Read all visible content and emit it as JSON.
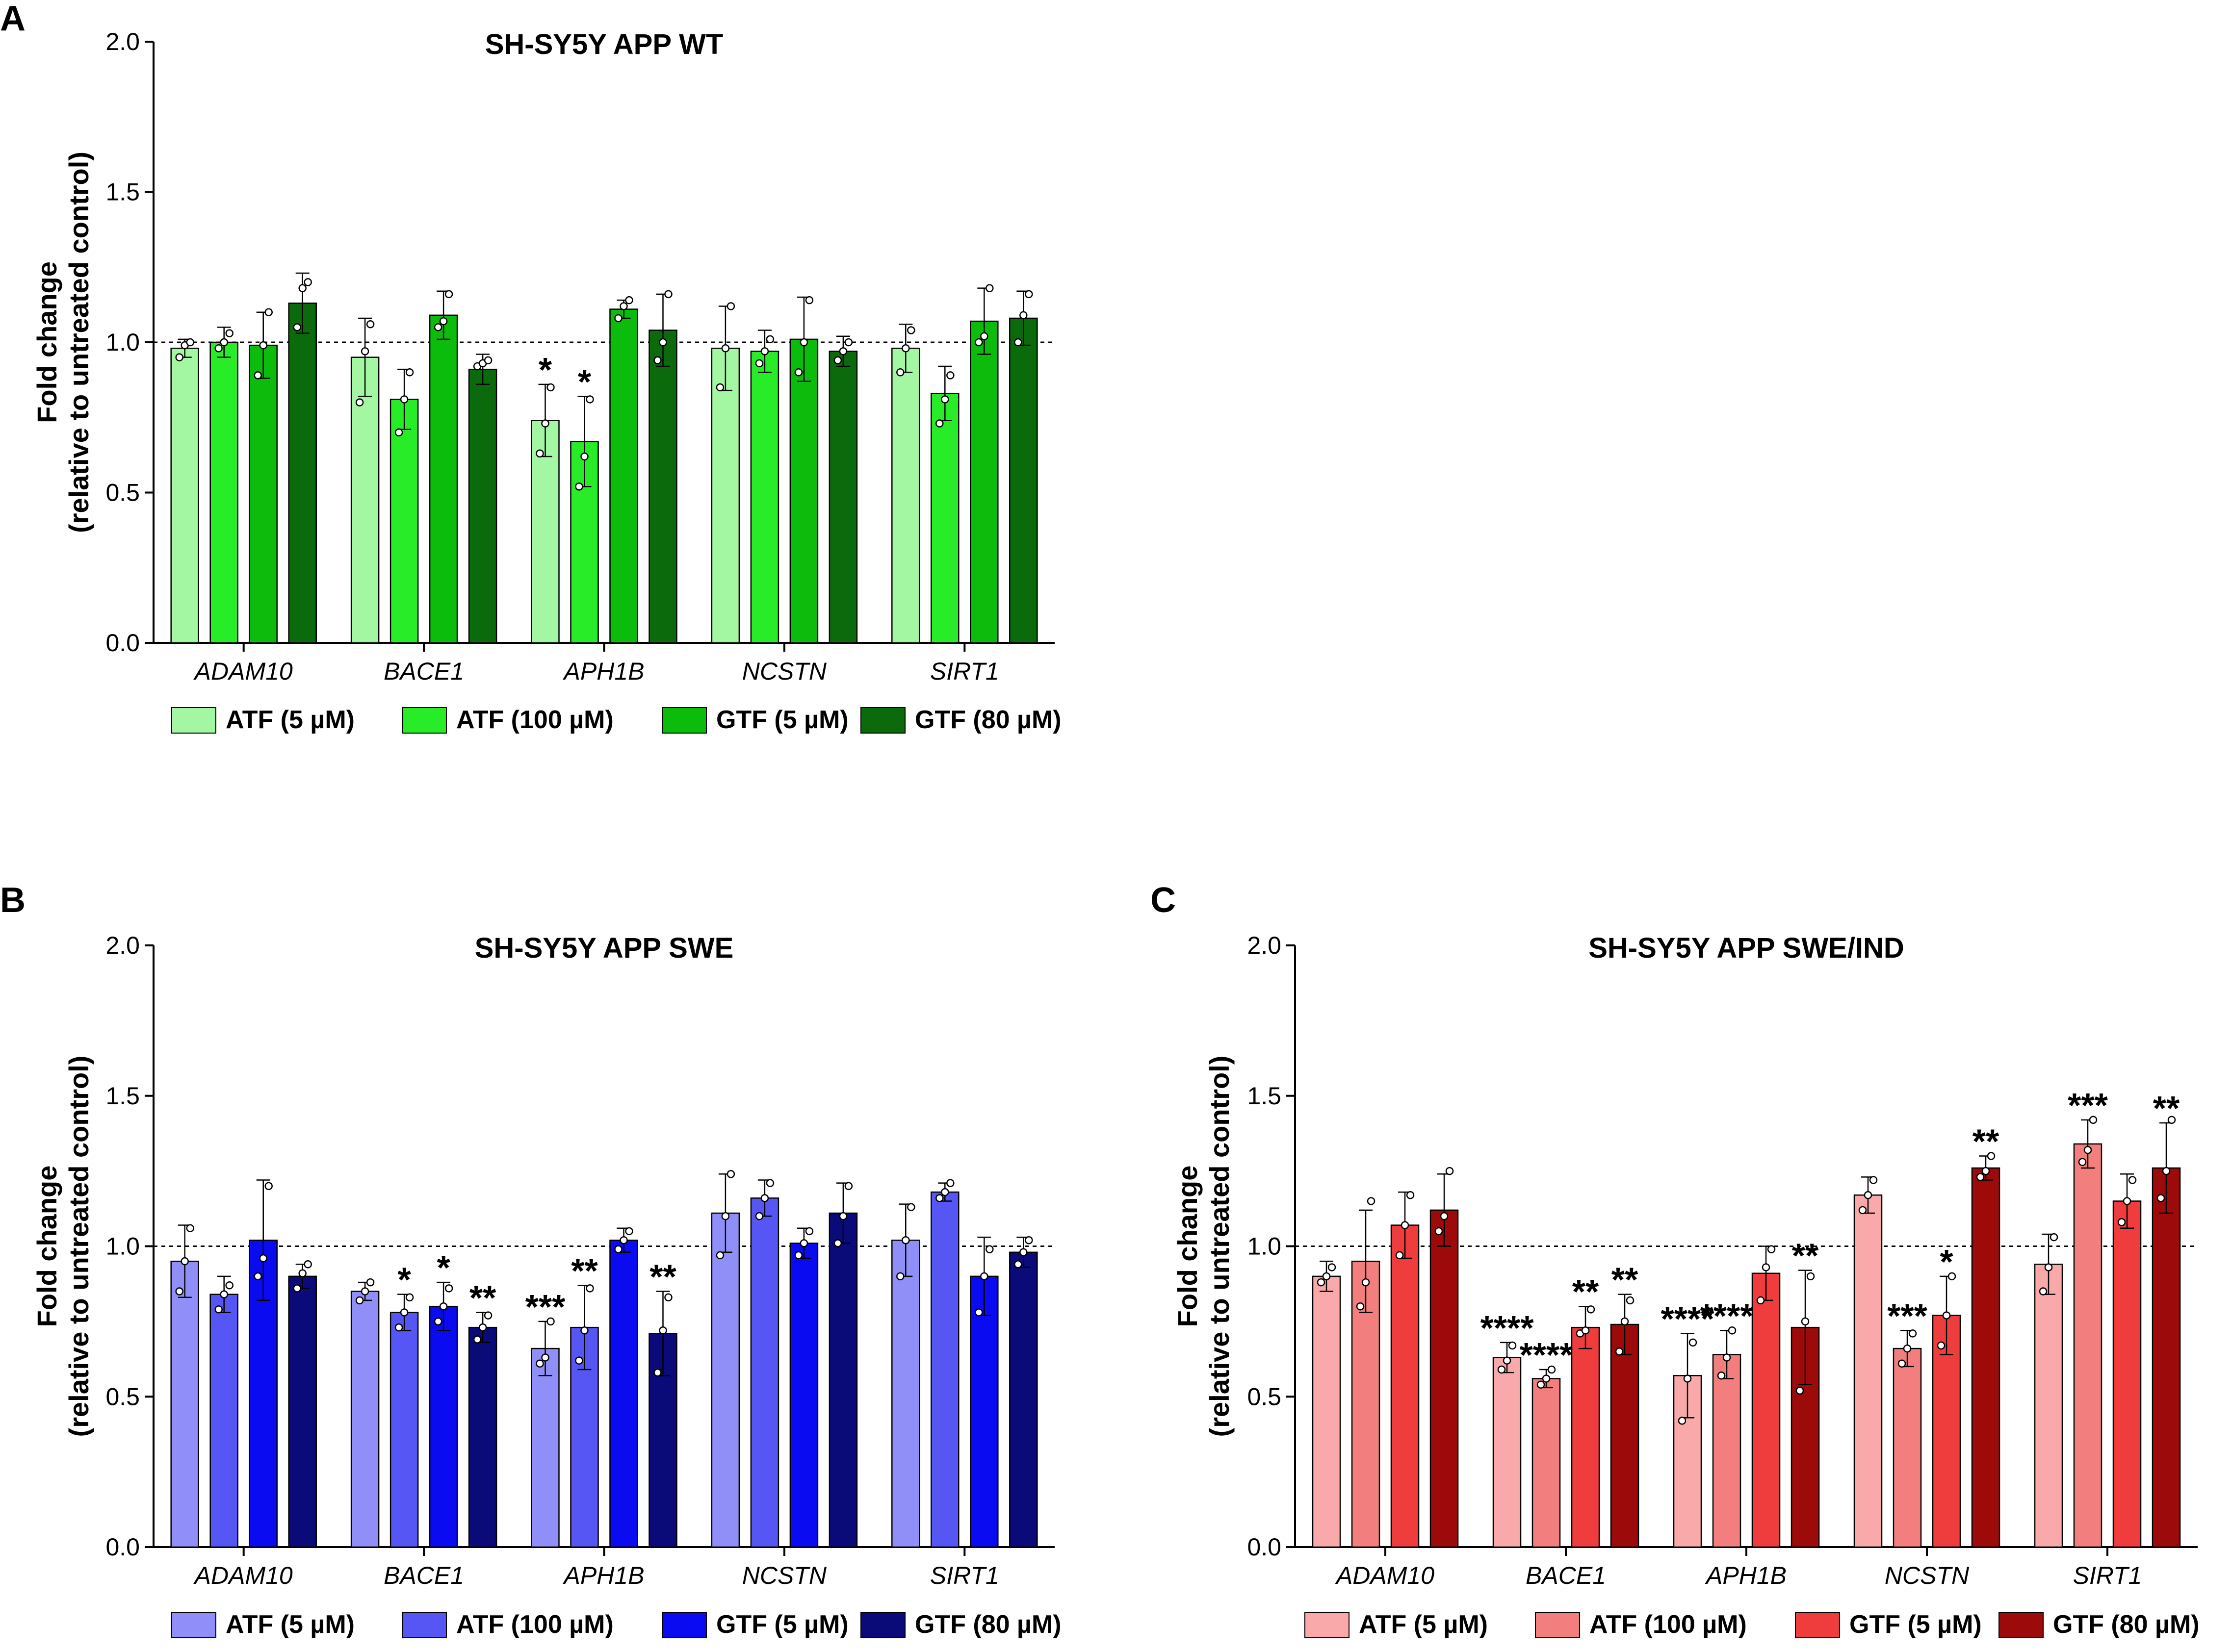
{
  "figure": {
    "ylabel_line1": "Fold change",
    "ylabel_line2": "(relative to untreated control)"
  },
  "chart_data": [
    {
      "panel": "A",
      "type": "bar",
      "title": "SH-SY5Y APP WT",
      "ylim": [
        0,
        2
      ],
      "yticks": [
        "0.0",
        "0.5",
        "1.0",
        "1.5",
        "2.0"
      ],
      "reference_line": 1.0,
      "categories": [
        "ADAM10",
        "BACE1",
        "APH1B",
        "NCSTN",
        "SIRT1"
      ],
      "series": [
        {
          "name": "ATF (5 µM)",
          "color": "#a3f7a3",
          "values": [
            0.98,
            0.95,
            0.74,
            0.98,
            0.98
          ],
          "errors": [
            0.03,
            0.13,
            0.12,
            0.14,
            0.08
          ],
          "sig": [
            "",
            "",
            "*",
            "",
            ""
          ],
          "points": [
            [
              0.95,
              0.99,
              1.0
            ],
            [
              0.8,
              0.97,
              1.06
            ],
            [
              0.63,
              0.73,
              0.85
            ],
            [
              0.85,
              0.98,
              1.12
            ],
            [
              0.9,
              0.98,
              1.04
            ]
          ]
        },
        {
          "name": "ATF (100 µM)",
          "color": "#28ec28",
          "values": [
            1.0,
            0.81,
            0.67,
            0.97,
            0.83
          ],
          "errors": [
            0.05,
            0.1,
            0.15,
            0.07,
            0.09
          ],
          "sig": [
            "",
            "",
            "*",
            "",
            ""
          ],
          "points": [
            [
              0.98,
              1.0,
              1.03
            ],
            [
              0.7,
              0.81,
              0.9
            ],
            [
              0.52,
              0.62,
              0.81
            ],
            [
              0.93,
              0.97,
              1.01
            ],
            [
              0.73,
              0.81,
              0.89
            ]
          ]
        },
        {
          "name": "GTF (5 µM)",
          "color": "#0cbc0c",
          "values": [
            0.99,
            1.09,
            1.11,
            1.01,
            1.07
          ],
          "errors": [
            0.11,
            0.08,
            0.03,
            0.14,
            0.11
          ],
          "sig": [
            "",
            "",
            "",
            "",
            ""
          ],
          "points": [
            [
              0.89,
              0.99,
              1.1
            ],
            [
              1.05,
              1.07,
              1.16
            ],
            [
              1.08,
              1.12,
              1.14
            ],
            [
              0.9,
              1.0,
              1.14
            ],
            [
              1.0,
              1.02,
              1.18
            ]
          ]
        },
        {
          "name": "GTF (80 µM)",
          "color": "#0b6a0b",
          "values": [
            1.13,
            0.91,
            1.04,
            0.97,
            1.08
          ],
          "errors": [
            0.1,
            0.05,
            0.12,
            0.05,
            0.09
          ],
          "sig": [
            "",
            "",
            "",
            "",
            ""
          ],
          "points": [
            [
              1.05,
              1.18,
              1.2
            ],
            [
              0.92,
              0.93,
              0.94
            ],
            [
              0.94,
              1.0,
              1.16
            ],
            [
              0.94,
              0.97,
              1.0
            ],
            [
              1.0,
              1.09,
              1.16
            ]
          ]
        }
      ]
    },
    {
      "panel": "B",
      "type": "bar",
      "title": "SH-SY5Y APP SWE",
      "ylim": [
        0,
        2
      ],
      "yticks": [
        "0.0",
        "0.5",
        "1.0",
        "1.5",
        "2.0"
      ],
      "reference_line": 1.0,
      "categories": [
        "ADAM10",
        "BACE1",
        "APH1B",
        "NCSTN",
        "SIRT1"
      ],
      "series": [
        {
          "name": "ATF (5 µM)",
          "color": "#8f8ff7",
          "values": [
            0.95,
            0.85,
            0.66,
            1.11,
            1.02
          ],
          "errors": [
            0.12,
            0.03,
            0.09,
            0.13,
            0.12
          ],
          "sig": [
            "",
            "",
            "***",
            "",
            ""
          ],
          "points": [
            [
              0.85,
              0.95,
              1.06
            ],
            [
              0.82,
              0.85,
              0.88
            ],
            [
              0.61,
              0.63,
              0.75
            ],
            [
              0.97,
              1.1,
              1.24
            ],
            [
              0.9,
              1.02,
              1.13
            ]
          ]
        },
        {
          "name": "ATF (100 µM)",
          "color": "#5656f5",
          "values": [
            0.84,
            0.78,
            0.73,
            1.16,
            1.18
          ],
          "errors": [
            0.06,
            0.06,
            0.14,
            0.06,
            0.03
          ],
          "sig": [
            "",
            "*",
            "**",
            "",
            ""
          ],
          "points": [
            [
              0.79,
              0.84,
              0.87
            ],
            [
              0.73,
              0.78,
              0.83
            ],
            [
              0.62,
              0.72,
              0.86
            ],
            [
              1.1,
              1.16,
              1.21
            ],
            [
              1.16,
              1.18,
              1.21
            ]
          ]
        },
        {
          "name": "GTF (5 µM)",
          "color": "#0b0bf2",
          "values": [
            1.02,
            0.8,
            1.02,
            1.01,
            0.9
          ],
          "errors": [
            0.2,
            0.08,
            0.04,
            0.05,
            0.13
          ],
          "sig": [
            "",
            "*",
            "",
            "",
            ""
          ],
          "points": [
            [
              0.9,
              0.96,
              1.2
            ],
            [
              0.75,
              0.8,
              0.86
            ],
            [
              0.99,
              1.02,
              1.05
            ],
            [
              0.97,
              1.01,
              1.05
            ],
            [
              0.78,
              0.9,
              0.99
            ]
          ]
        },
        {
          "name": "GTF (80 µM)",
          "color": "#0a0a78",
          "values": [
            0.9,
            0.73,
            0.71,
            1.11,
            0.98
          ],
          "errors": [
            0.04,
            0.05,
            0.14,
            0.1,
            0.05
          ],
          "sig": [
            "",
            "**",
            "**",
            "",
            ""
          ],
          "points": [
            [
              0.86,
              0.91,
              0.94
            ],
            [
              0.69,
              0.73,
              0.77
            ],
            [
              0.58,
              0.72,
              0.83
            ],
            [
              1.01,
              1.1,
              1.2
            ],
            [
              0.94,
              0.98,
              1.02
            ]
          ]
        }
      ]
    },
    {
      "panel": "C",
      "type": "bar",
      "title": "SH-SY5Y APP SWE/IND",
      "ylim": [
        0,
        2
      ],
      "yticks": [
        "0.0",
        "0.5",
        "1.0",
        "1.5",
        "2.0"
      ],
      "reference_line": 1.0,
      "categories": [
        "ADAM10",
        "BACE1",
        "APH1B",
        "NCSTN",
        "SIRT1"
      ],
      "series": [
        {
          "name": "ATF (5 µM)",
          "color": "#f9a9a9",
          "values": [
            0.9,
            0.63,
            0.57,
            1.17,
            0.94
          ],
          "errors": [
            0.05,
            0.05,
            0.14,
            0.06,
            0.1
          ],
          "sig": [
            "",
            "****",
            "****",
            "",
            ""
          ],
          "points": [
            [
              0.88,
              0.9,
              0.93
            ],
            [
              0.59,
              0.62,
              0.67
            ],
            [
              0.42,
              0.56,
              0.68
            ],
            [
              1.12,
              1.17,
              1.22
            ],
            [
              0.85,
              0.93,
              1.03
            ]
          ]
        },
        {
          "name": "ATF (100 µM)",
          "color": "#f27e7e",
          "values": [
            0.95,
            0.56,
            0.64,
            0.66,
            1.34
          ],
          "errors": [
            0.17,
            0.03,
            0.08,
            0.06,
            0.08
          ],
          "sig": [
            "",
            "****",
            "****",
            "***",
            "***"
          ],
          "points": [
            [
              0.8,
              0.88,
              1.15
            ],
            [
              0.54,
              0.56,
              0.59
            ],
            [
              0.57,
              0.63,
              0.72
            ],
            [
              0.61,
              0.66,
              0.71
            ],
            [
              1.28,
              1.32,
              1.42
            ]
          ]
        },
        {
          "name": "GTF (5 µM)",
          "color": "#ef3d3d",
          "values": [
            1.07,
            0.73,
            0.91,
            0.77,
            1.15
          ],
          "errors": [
            0.11,
            0.07,
            0.09,
            0.13,
            0.09
          ],
          "sig": [
            "",
            "**",
            "",
            "*",
            ""
          ],
          "points": [
            [
              0.97,
              1.07,
              1.17
            ],
            [
              0.71,
              0.72,
              0.79
            ],
            [
              0.82,
              0.93,
              0.99
            ],
            [
              0.67,
              0.77,
              0.9
            ],
            [
              1.08,
              1.15,
              1.22
            ]
          ]
        },
        {
          "name": "GTF (80 µM)",
          "color": "#9d0a0a",
          "values": [
            1.12,
            0.74,
            0.73,
            1.26,
            1.26
          ],
          "errors": [
            0.12,
            0.1,
            0.19,
            0.04,
            0.15
          ],
          "sig": [
            "",
            "**",
            "**",
            "**",
            "**"
          ],
          "points": [
            [
              1.05,
              1.1,
              1.25
            ],
            [
              0.65,
              0.75,
              0.82
            ],
            [
              0.52,
              0.75,
              0.9
            ],
            [
              1.23,
              1.25,
              1.3
            ],
            [
              1.16,
              1.25,
              1.42
            ]
          ]
        }
      ]
    }
  ]
}
